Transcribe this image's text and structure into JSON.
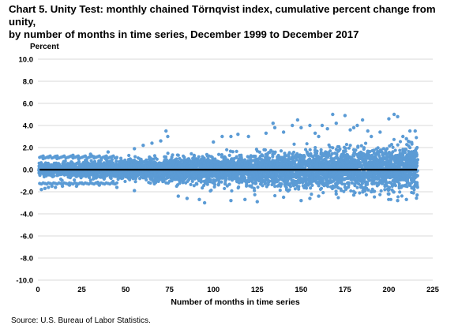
{
  "title_line1": "Chart 5. Unity Test: monthly chained Törnqvist index, cumulative percent change from unity,",
  "title_line2": "by number of months in time series, December 1999 to December 2017",
  "source": "Source: U.S. Bureau of Labor Statistics.",
  "chart_data": {
    "type": "scatter",
    "title": "Chart 5. Unity Test: monthly chained Törnqvist index, cumulative percent change from unity, by number of months in time series, December 1999 to December 2017",
    "xlabel": "Number of months in time series",
    "ylabel": "Percent",
    "xlim": [
      0,
      225
    ],
    "ylim": [
      -10,
      10
    ],
    "x_ticks": [
      0,
      25,
      50,
      75,
      100,
      125,
      150,
      175,
      200,
      225
    ],
    "y_ticks": [
      10,
      8,
      6,
      4,
      2,
      0,
      -2,
      -4,
      -6,
      -8,
      -10
    ],
    "x_tick_labels": [
      "0",
      "25",
      "50",
      "75",
      "100",
      "125",
      "150",
      "175",
      "200",
      "225"
    ],
    "y_tick_labels": [
      "10.0",
      "8.0",
      "6.0",
      "4.0",
      "2.0",
      "0.0",
      "-2.0",
      "-4.0",
      "-6.0",
      "-8.0",
      "-10.0"
    ],
    "grid": "horizontal",
    "point_color": "#5b9bd5",
    "reference_line": {
      "y": 0,
      "x_range": [
        1,
        216
      ],
      "color": "#000000"
    },
    "series": [
      {
        "points": [
          [
            2,
            -1.8
          ],
          [
            4,
            -1.7
          ],
          [
            6,
            -1.6
          ],
          [
            8,
            -1.5
          ],
          [
            10,
            -1.6
          ],
          [
            14,
            -1.5
          ],
          [
            18,
            -1.4
          ],
          [
            22,
            -1.5
          ],
          [
            3,
            1.0
          ],
          [
            6,
            1.1
          ],
          [
            10,
            1.2
          ],
          [
            15,
            1.2
          ],
          [
            20,
            1.3
          ],
          [
            30,
            1.4
          ],
          [
            40,
            1.6
          ],
          [
            25,
            -1.2
          ],
          [
            35,
            -1.4
          ],
          [
            45,
            -1.6
          ],
          [
            55,
            -1.9
          ],
          [
            55,
            1.9
          ],
          [
            60,
            2.2
          ],
          [
            65,
            2.4
          ],
          [
            70,
            2.6
          ],
          [
            74,
            3.0
          ],
          [
            73,
            3.5
          ],
          [
            80,
            -2.4
          ],
          [
            85,
            -2.6
          ],
          [
            92,
            -2.7
          ],
          [
            95,
            -3.0
          ],
          [
            100,
            2.5
          ],
          [
            105,
            3.0
          ],
          [
            110,
            3.0
          ],
          [
            114,
            3.2
          ],
          [
            120,
            3.0
          ],
          [
            110,
            -2.8
          ],
          [
            118,
            -2.7
          ],
          [
            125,
            -2.9
          ],
          [
            130,
            3.3
          ],
          [
            134,
            4.2
          ],
          [
            135,
            3.8
          ],
          [
            140,
            3.4
          ],
          [
            145,
            4.0
          ],
          [
            148,
            4.5
          ],
          [
            150,
            3.8
          ],
          [
            155,
            4.0
          ],
          [
            158,
            3.3
          ],
          [
            160,
            3.0
          ],
          [
            162,
            4.0
          ],
          [
            140,
            -2.5
          ],
          [
            150,
            -2.8
          ],
          [
            155,
            -2.6
          ],
          [
            160,
            -2.4
          ],
          [
            165,
            3.7
          ],
          [
            168,
            5.0
          ],
          [
            170,
            4.2
          ],
          [
            175,
            4.9
          ],
          [
            178,
            3.6
          ],
          [
            180,
            3.8
          ],
          [
            182,
            4.0
          ],
          [
            185,
            4.5
          ],
          [
            188,
            3.5
          ],
          [
            190,
            3.0
          ],
          [
            195,
            3.4
          ],
          [
            200,
            4.6
          ],
          [
            203,
            5.0
          ],
          [
            205,
            4.8
          ],
          [
            208,
            3.0
          ],
          [
            210,
            2.8
          ],
          [
            212,
            3.5
          ],
          [
            215,
            3.5
          ],
          [
            170,
            -2.2
          ],
          [
            180,
            -2.3
          ],
          [
            190,
            -2.0
          ],
          [
            200,
            -2.2
          ],
          [
            205,
            -2.8
          ],
          [
            210,
            -2.7
          ],
          [
            214,
            -2.1
          ],
          [
            200,
            -1.8
          ],
          [
            207,
            -1.6
          ],
          [
            212,
            -1.4
          ],
          [
            216,
            -1.3
          ]
        ]
      }
    ]
  }
}
